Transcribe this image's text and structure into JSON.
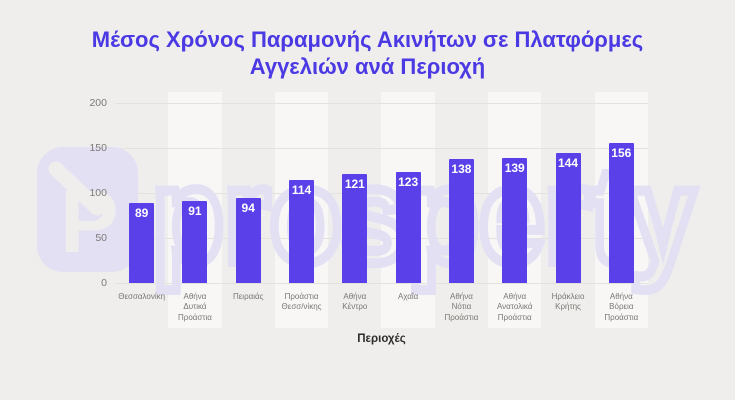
{
  "title": "Μέσος Χρόνος Παραμονής Ακινήτων σε Πλατφόρμες Αγγελιών ανά Περιοχή",
  "title_lines": [
    "Μέσος Χρόνος Παραμονής Ακινήτων σε Πλατφόρμες",
    "Αγγελιών ανά Περιοχή"
  ],
  "watermark": {
    "brand": "prosperty",
    "logo_letter": "P"
  },
  "colors": {
    "background": "#efeeec",
    "title": "#4b39e4",
    "bar": "#5a40e8",
    "value_label": "#ffffff",
    "tick_label": "#7d7a76",
    "category_label": "#7a7772",
    "axis_title": "#2f2d2a",
    "gridline": "#e3e2df",
    "column_band": "#f7f7f5",
    "watermark": "#e3e0f3"
  },
  "chart_data": {
    "type": "bar",
    "title": "Μέσος Χρόνος Παραμονής Ακινήτων σε Πλατφόρμες Αγγελιών ανά Περιοχή",
    "categories": [
      "Θεσσαλονίκη",
      "Αθήνα Δυτικά Προάστια",
      "Πειραιάς",
      "Προάστια Θεσσ/νίκης",
      "Αθήνα Κέντρο",
      "Αχαΐα",
      "Αθήνα Νότια Προάστια",
      "Αθήνα Ανατολικά Προάστια",
      "Ηράκλειο Κρήτης",
      "Αθήνα Βόρεια Προάστια"
    ],
    "category_lines": [
      [
        "Θεσσαλονίκη"
      ],
      [
        "Αθήνα",
        "Δυτικά",
        "Προάστια"
      ],
      [
        "Πειραιάς"
      ],
      [
        "Προάστια",
        "Θεσσ/νίκης"
      ],
      [
        "Αθήνα",
        "Κέντρο"
      ],
      [
        "Αχαΐα"
      ],
      [
        "Αθήνα",
        "Νότια",
        "Προάστια"
      ],
      [
        "Αθήνα",
        "Ανατολικά",
        "Προάστια"
      ],
      [
        "Ηράκλειο",
        "Κρήτης"
      ],
      [
        "Αθήνα",
        "Βόρεια",
        "Προάστια"
      ]
    ],
    "values": [
      89,
      91,
      94,
      114,
      121,
      123,
      138,
      139,
      144,
      156
    ],
    "value_labels_position": "inside-top",
    "xlabel": "Περιοχές",
    "ylabel": "",
    "yticks": [
      0,
      50,
      100,
      150,
      200
    ],
    "ylim": [
      0,
      200
    ],
    "grid": "horizontal",
    "legend": false
  }
}
